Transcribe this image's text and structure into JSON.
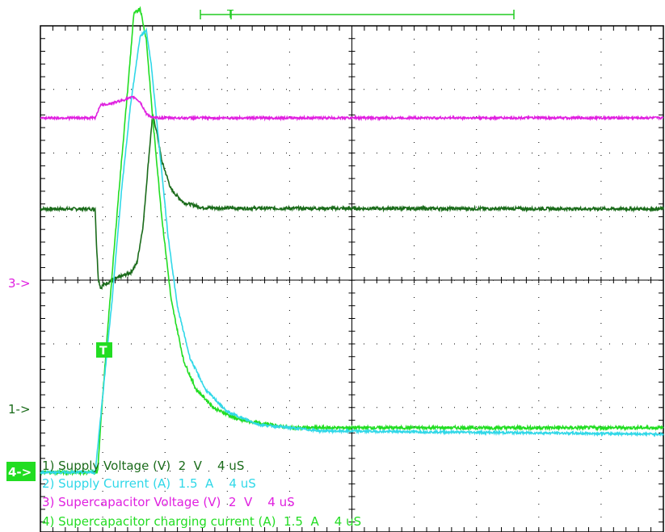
{
  "chart_data": {
    "type": "line",
    "x_divisions": 10,
    "y_divisions": 8,
    "grid": true,
    "time_per_div": "4 uS",
    "trigger_marker": "T",
    "channel_markers": [
      {
        "text": "3->",
        "channel": 3,
        "color": "#e020e0"
      },
      {
        "text": "1->",
        "channel": 1,
        "color": "#1a6b1a"
      },
      {
        "text": "4->",
        "channel": 4,
        "color": "#22dd22"
      }
    ],
    "legend": [
      {
        "text": "1) Supply Voltage (V)  2  V    4 uS",
        "color": "#1a6b1a"
      },
      {
        "text": "2) Supply Current (A)  1.5  A    4 uS",
        "color": "#30d8e8"
      },
      {
        "text": "3) Supercapacitor Voltage (V)  2  V    4 uS",
        "color": "#e020e0"
      },
      {
        "text": "4) Supercapacitor charging current (A)  1.5  A    4 uS",
        "color": "#22dd22"
      }
    ],
    "series": [
      {
        "channel": 1,
        "color": "#1a6b1a",
        "noise": 0.025,
        "points": [
          [
            0,
            3.15
          ],
          [
            0.88,
            3.15
          ],
          [
            0.9,
            2.6
          ],
          [
            0.93,
            2.05
          ],
          [
            0.97,
            1.9
          ],
          [
            1.0,
            1.95
          ],
          [
            1.2,
            2.05
          ],
          [
            1.45,
            2.15
          ],
          [
            1.55,
            2.3
          ],
          [
            1.65,
            2.9
          ],
          [
            1.73,
            3.85
          ],
          [
            1.8,
            4.62
          ],
          [
            1.86,
            4.4
          ],
          [
            1.95,
            3.9
          ],
          [
            2.1,
            3.45
          ],
          [
            2.3,
            3.25
          ],
          [
            2.6,
            3.17
          ],
          [
            3.2,
            3.16
          ],
          [
            10,
            3.15
          ]
        ]
      },
      {
        "channel": 2,
        "color": "#30d8e8",
        "noise": 0.018,
        "points": [
          [
            0,
            0.0
          ],
          [
            0.88,
            0.0
          ],
          [
            1.0,
            1.2
          ],
          [
            1.15,
            2.7
          ],
          [
            1.3,
            4.4
          ],
          [
            1.45,
            5.8
          ],
          [
            1.6,
            6.85
          ],
          [
            1.7,
            6.95
          ],
          [
            1.78,
            6.4
          ],
          [
            1.9,
            5.2
          ],
          [
            2.05,
            3.7
          ],
          [
            2.2,
            2.6
          ],
          [
            2.4,
            1.8
          ],
          [
            2.65,
            1.3
          ],
          [
            3.0,
            0.95
          ],
          [
            3.5,
            0.75
          ],
          [
            4.5,
            0.65
          ],
          [
            10,
            0.6
          ]
        ]
      },
      {
        "channel": 3,
        "color": "#e020e0",
        "noise": 0.018,
        "points": [
          [
            0,
            2.55
          ],
          [
            0.88,
            2.55
          ],
          [
            0.96,
            2.75
          ],
          [
            1.15,
            2.78
          ],
          [
            1.4,
            2.85
          ],
          [
            1.5,
            2.88
          ],
          [
            1.6,
            2.8
          ],
          [
            1.7,
            2.62
          ],
          [
            1.8,
            2.55
          ],
          [
            10,
            2.55
          ]
        ]
      },
      {
        "channel": 4,
        "color": "#22dd22",
        "noise": 0.025,
        "points": [
          [
            0,
            0.0
          ],
          [
            0.92,
            0.0
          ],
          [
            0.97,
            0.8
          ],
          [
            1.1,
            2.5
          ],
          [
            1.25,
            4.3
          ],
          [
            1.4,
            6.0
          ],
          [
            1.5,
            7.2
          ],
          [
            1.6,
            7.3
          ],
          [
            1.7,
            6.8
          ],
          [
            1.8,
            5.6
          ],
          [
            1.95,
            4.0
          ],
          [
            2.1,
            2.7
          ],
          [
            2.3,
            1.75
          ],
          [
            2.5,
            1.3
          ],
          [
            2.8,
            1.0
          ],
          [
            3.2,
            0.82
          ],
          [
            4.0,
            0.7
          ],
          [
            10,
            0.7
          ]
        ]
      }
    ]
  }
}
